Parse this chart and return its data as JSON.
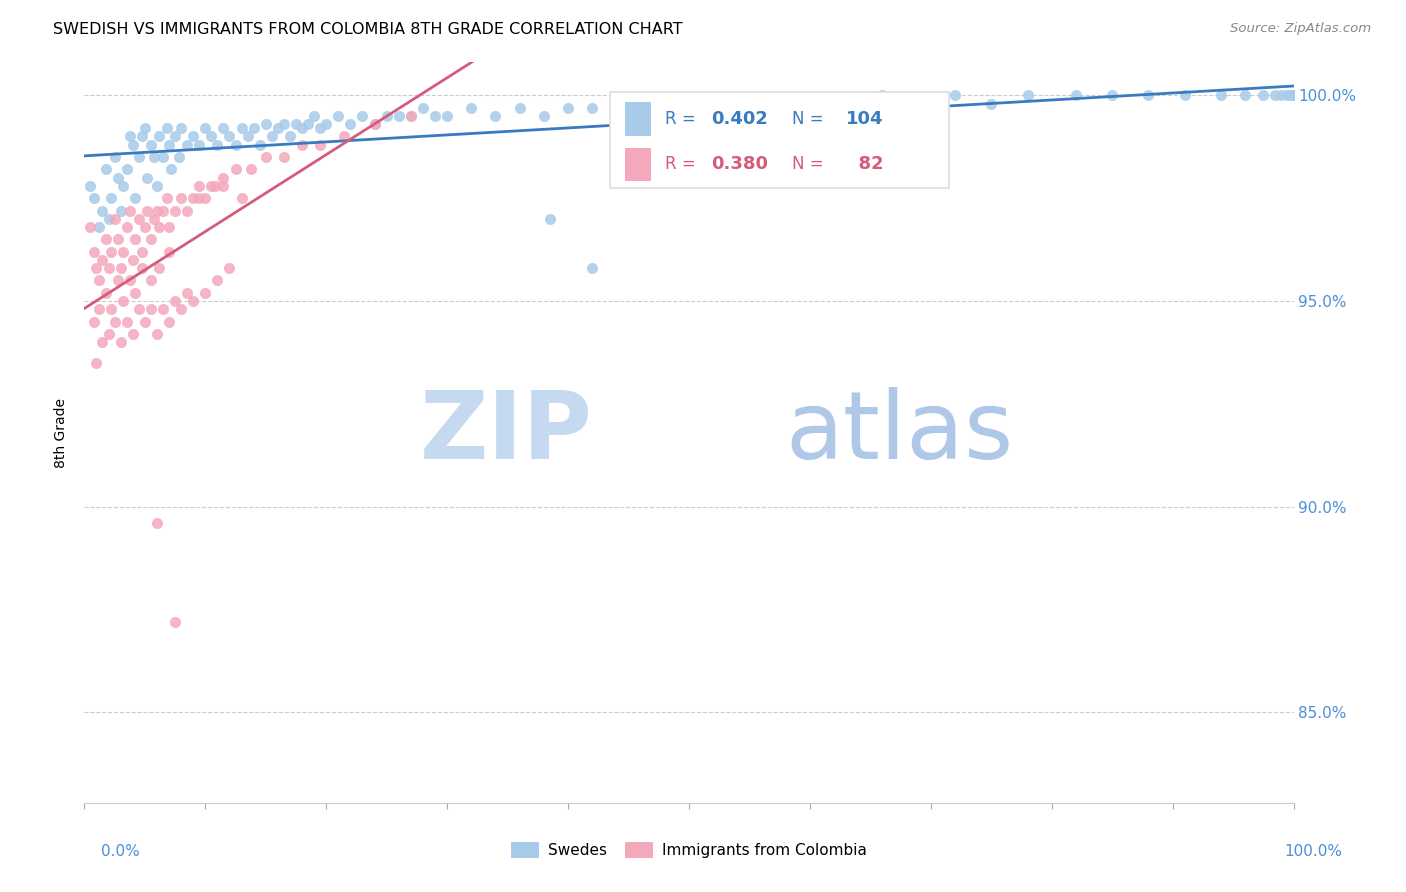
{
  "title": "SWEDISH VS IMMIGRANTS FROM COLOMBIA 8TH GRADE CORRELATION CHART",
  "source": "Source: ZipAtlas.com",
  "ylabel": "8th Grade",
  "xlim": [
    0.0,
    1.0
  ],
  "ylim": [
    0.828,
    1.008
  ],
  "yticks": [
    0.85,
    0.9,
    0.95,
    1.0
  ],
  "ytick_labels": [
    "85.0%",
    "90.0%",
    "95.0%",
    "100.0%"
  ],
  "legend_blue_label": "Swedes",
  "legend_pink_label": "Immigrants from Colombia",
  "r_blue": 0.402,
  "n_blue": 104,
  "r_pink": 0.38,
  "n_pink": 82,
  "blue_color": "#a8cbea",
  "pink_color": "#f4a8bc",
  "trend_blue_color": "#3a7abf",
  "trend_pink_color": "#d45c7a",
  "watermark_zip": "ZIP",
  "watermark_atlas": "atlas",
  "watermark_color_zip": "#cce0f5",
  "watermark_color_atlas": "#b8cfe8",
  "blue_points_x": [
    0.005,
    0.008,
    0.012,
    0.015,
    0.018,
    0.02,
    0.022,
    0.025,
    0.028,
    0.03,
    0.032,
    0.035,
    0.038,
    0.04,
    0.042,
    0.045,
    0.048,
    0.05,
    0.052,
    0.055,
    0.058,
    0.06,
    0.062,
    0.065,
    0.068,
    0.07,
    0.072,
    0.075,
    0.078,
    0.08,
    0.085,
    0.09,
    0.095,
    0.1,
    0.105,
    0.11,
    0.115,
    0.12,
    0.125,
    0.13,
    0.135,
    0.14,
    0.145,
    0.15,
    0.155,
    0.16,
    0.165,
    0.17,
    0.175,
    0.18,
    0.185,
    0.19,
    0.195,
    0.2,
    0.21,
    0.22,
    0.23,
    0.24,
    0.25,
    0.26,
    0.27,
    0.28,
    0.29,
    0.3,
    0.32,
    0.34,
    0.36,
    0.38,
    0.4,
    0.42,
    0.44,
    0.46,
    0.48,
    0.5,
    0.52,
    0.54,
    0.58,
    0.62,
    0.66,
    0.7,
    0.72,
    0.75,
    0.78,
    0.82,
    0.85,
    0.88,
    0.91,
    0.94,
    0.96,
    0.975,
    0.985,
    0.99,
    0.995,
    0.998,
    1.0,
    1.0,
    1.0,
    1.0,
    1.0,
    1.0,
    1.0,
    1.0,
    0.385,
    0.42
  ],
  "blue_points_y": [
    0.978,
    0.975,
    0.968,
    0.972,
    0.982,
    0.97,
    0.975,
    0.985,
    0.98,
    0.972,
    0.978,
    0.982,
    0.99,
    0.988,
    0.975,
    0.985,
    0.99,
    0.992,
    0.98,
    0.988,
    0.985,
    0.978,
    0.99,
    0.985,
    0.992,
    0.988,
    0.982,
    0.99,
    0.985,
    0.992,
    0.988,
    0.99,
    0.988,
    0.992,
    0.99,
    0.988,
    0.992,
    0.99,
    0.988,
    0.992,
    0.99,
    0.992,
    0.988,
    0.993,
    0.99,
    0.992,
    0.993,
    0.99,
    0.993,
    0.992,
    0.993,
    0.995,
    0.992,
    0.993,
    0.995,
    0.993,
    0.995,
    0.993,
    0.995,
    0.995,
    0.995,
    0.997,
    0.995,
    0.995,
    0.997,
    0.995,
    0.997,
    0.995,
    0.997,
    0.997,
    0.997,
    0.998,
    0.997,
    0.998,
    0.997,
    0.998,
    0.998,
    0.998,
    1.0,
    0.998,
    1.0,
    0.998,
    1.0,
    1.0,
    1.0,
    1.0,
    1.0,
    1.0,
    1.0,
    1.0,
    1.0,
    1.0,
    1.0,
    1.0,
    1.0,
    1.0,
    1.0,
    1.0,
    1.0,
    1.0,
    1.0,
    1.0,
    0.97,
    0.958
  ],
  "pink_points_x": [
    0.005,
    0.008,
    0.01,
    0.012,
    0.015,
    0.018,
    0.02,
    0.022,
    0.025,
    0.028,
    0.03,
    0.032,
    0.035,
    0.038,
    0.04,
    0.042,
    0.045,
    0.048,
    0.05,
    0.052,
    0.055,
    0.058,
    0.06,
    0.062,
    0.065,
    0.068,
    0.07,
    0.075,
    0.08,
    0.085,
    0.09,
    0.095,
    0.1,
    0.108,
    0.115,
    0.125,
    0.138,
    0.15,
    0.165,
    0.18,
    0.195,
    0.215,
    0.24,
    0.27,
    0.008,
    0.012,
    0.018,
    0.022,
    0.028,
    0.032,
    0.038,
    0.042,
    0.048,
    0.055,
    0.062,
    0.07,
    0.01,
    0.015,
    0.02,
    0.025,
    0.03,
    0.035,
    0.04,
    0.045,
    0.05,
    0.055,
    0.06,
    0.065,
    0.07,
    0.075,
    0.08,
    0.085,
    0.09,
    0.1,
    0.11,
    0.12,
    0.095,
    0.105,
    0.13,
    0.115,
    0.06,
    0.075
  ],
  "pink_points_y": [
    0.968,
    0.962,
    0.958,
    0.955,
    0.96,
    0.965,
    0.958,
    0.962,
    0.97,
    0.965,
    0.958,
    0.962,
    0.968,
    0.972,
    0.96,
    0.965,
    0.97,
    0.962,
    0.968,
    0.972,
    0.965,
    0.97,
    0.972,
    0.968,
    0.972,
    0.975,
    0.968,
    0.972,
    0.975,
    0.972,
    0.975,
    0.978,
    0.975,
    0.978,
    0.98,
    0.982,
    0.982,
    0.985,
    0.985,
    0.988,
    0.988,
    0.99,
    0.993,
    0.995,
    0.945,
    0.948,
    0.952,
    0.948,
    0.955,
    0.95,
    0.955,
    0.952,
    0.958,
    0.955,
    0.958,
    0.962,
    0.935,
    0.94,
    0.942,
    0.945,
    0.94,
    0.945,
    0.942,
    0.948,
    0.945,
    0.948,
    0.942,
    0.948,
    0.945,
    0.95,
    0.948,
    0.952,
    0.95,
    0.952,
    0.955,
    0.958,
    0.975,
    0.978,
    0.975,
    0.978,
    0.896,
    0.872
  ]
}
